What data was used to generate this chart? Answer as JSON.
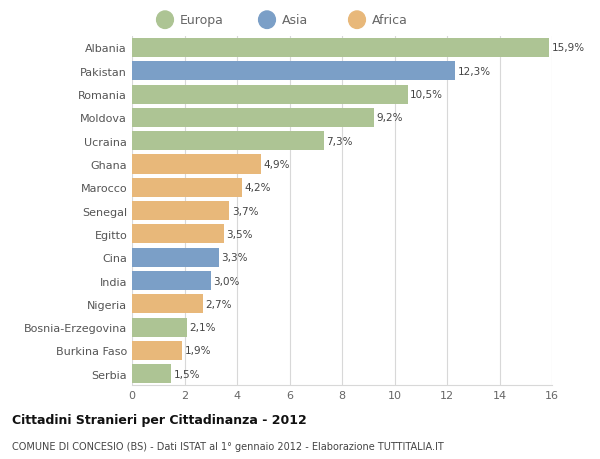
{
  "categories": [
    "Albania",
    "Pakistan",
    "Romania",
    "Moldova",
    "Ucraina",
    "Ghana",
    "Marocco",
    "Senegal",
    "Egitto",
    "Cina",
    "India",
    "Nigeria",
    "Bosnia-Erzegovina",
    "Burkina Faso",
    "Serbia"
  ],
  "values": [
    15.9,
    12.3,
    10.5,
    9.2,
    7.3,
    4.9,
    4.2,
    3.7,
    3.5,
    3.3,
    3.0,
    2.7,
    2.1,
    1.9,
    1.5
  ],
  "labels": [
    "15,9%",
    "12,3%",
    "10,5%",
    "9,2%",
    "7,3%",
    "4,9%",
    "4,2%",
    "3,7%",
    "3,5%",
    "3,3%",
    "3,0%",
    "2,7%",
    "2,1%",
    "1,9%",
    "1,5%"
  ],
  "continents": [
    "Europa",
    "Asia",
    "Europa",
    "Europa",
    "Europa",
    "Africa",
    "Africa",
    "Africa",
    "Africa",
    "Asia",
    "Asia",
    "Africa",
    "Europa",
    "Africa",
    "Europa"
  ],
  "colors": {
    "Europa": "#adc494",
    "Asia": "#7b9fc7",
    "Africa": "#e8b87a"
  },
  "xlim": [
    0,
    16
  ],
  "xticks": [
    0,
    2,
    4,
    6,
    8,
    10,
    12,
    14,
    16
  ],
  "title": "Cittadini Stranieri per Cittadinanza - 2012",
  "subtitle": "COMUNE DI CONCESIO (BS) - Dati ISTAT al 1° gennaio 2012 - Elaborazione TUTTITALIA.IT",
  "background_color": "#ffffff",
  "grid_color": "#d8d8d8",
  "bar_height": 0.82
}
